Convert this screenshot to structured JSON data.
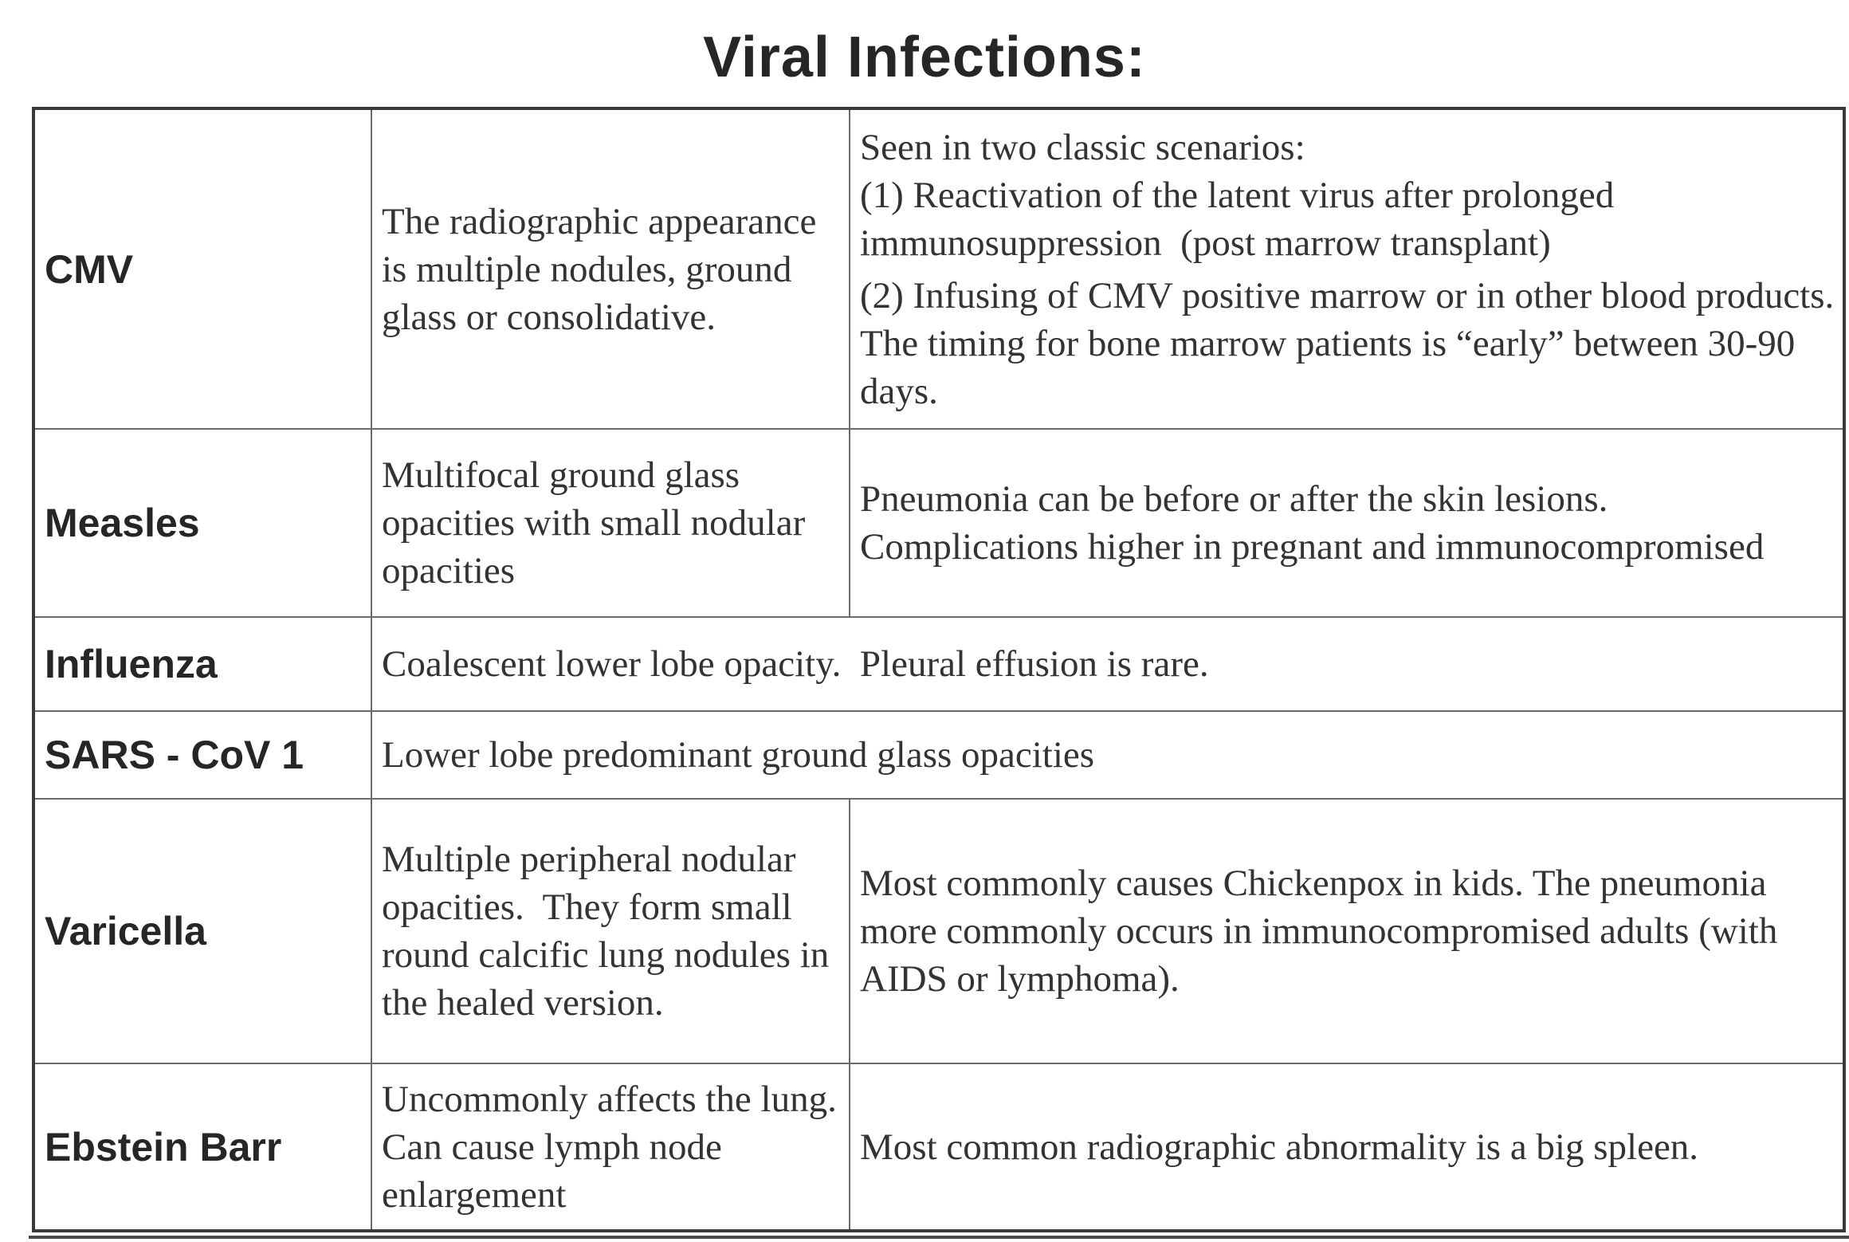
{
  "title": "Viral Infections:",
  "rows": [
    {
      "name": "CMV",
      "description": "The radiographic appearance is multiple nodules, ground glass or consolidative.",
      "notes": [
        "Seen in two classic scenarios:",
        "(1) Reactivation of the latent virus after prolonged immunosuppression  (post marrow transplant)",
        "(2) Infusing of CMV positive marrow or in other blood products.  The timing for bone marrow patients is “early” between 30-90 days."
      ]
    },
    {
      "name": "Measles",
      "description": "Multifocal ground glass opacities with small nodular opacities",
      "notes": "Pneumonia can be before or after the skin lesions. Complications higher in pregnant and immunocompromised"
    },
    {
      "name": "Influenza",
      "description": "Coalescent lower lobe opacity.  Pleural effusion is rare."
    },
    {
      "name": "SARS - CoV 1",
      "description": "Lower lobe predominant ground glass opacities"
    },
    {
      "name": "Varicella",
      "description": "Multiple peripheral nodular opacities.  They form small round calcific lung nodules in the healed version.",
      "notes": "Most commonly causes Chickenpox in kids. The pneumonia more commonly occurs in immunocompromised adults (with AIDS or lymphoma)."
    },
    {
      "name": "Ebstein Barr",
      "description": "Uncommonly affects the lung. Can cause lymph node enlargement",
      "notes": "Most common radiographic abnormality is a big spleen."
    }
  ]
}
